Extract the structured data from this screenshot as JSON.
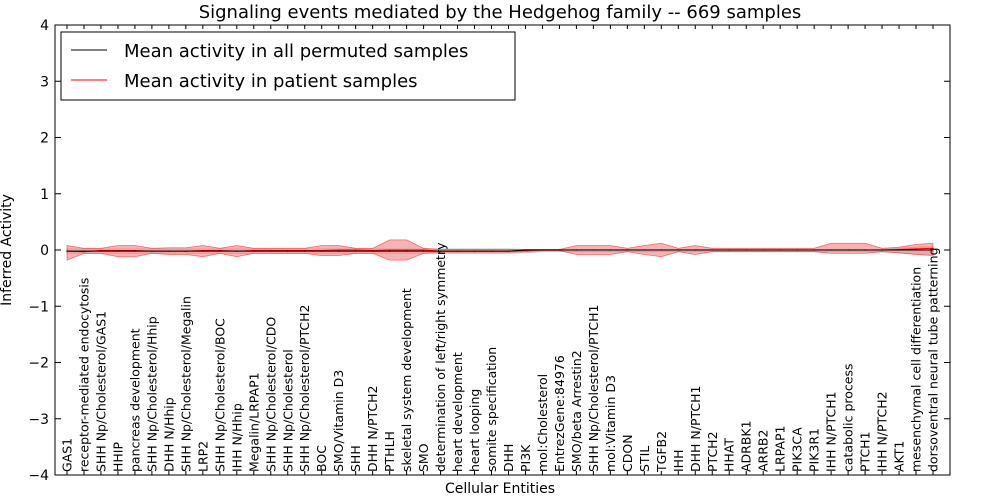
{
  "chart_data": {
    "type": "line",
    "title": "Signaling events mediated by the Hedgehog family -- 669 samples",
    "xlabel": "Cellular Entities",
    "ylabel": "Inferred Activity",
    "ylim": [
      -4,
      4
    ],
    "yticks": [
      -4,
      -3,
      -2,
      -1,
      0,
      1,
      2,
      3,
      4
    ],
    "ytick_labels": [
      "−4",
      "−3",
      "−2",
      "−1",
      "0",
      "1",
      "2",
      "3",
      "4"
    ],
    "grid": false,
    "legend_position": "top-left",
    "categories": [
      "GAS1",
      "receptor-mediated endocytosis",
      "SHH Np/Cholesterol/GAS1",
      "HHIP",
      "pancreas development",
      "SHH Np/Cholesterol/Hhip",
      "DHH N/Hhip",
      "SHH Np/Cholesterol/Megalin",
      "LRP2",
      "SHH Np/Cholesterol/BOC",
      "IHH N/Hhip",
      "Megalin/LRPAP1",
      "SHH Np/Cholesterol/CDO",
      "SHH Np/Cholesterol",
      "SHH Np/Cholesterol/PTCH2",
      "BOC",
      "SMO/Vitamin D3",
      "SHH",
      "DHH N/PTCH2",
      "PTHLH",
      "skeletal system development",
      "SMO",
      "determination of left/right symmetry",
      "heart development",
      "heart looping",
      "somite specification",
      "DHH",
      "PI3K",
      "mol:Cholesterol",
      "EntrezGene:84976",
      "SMO/beta Arrestin2",
      "SHH Np/Cholesterol/PTCH1",
      "mol:Vitamin D3",
      "CDON",
      "STIL",
      "TGFB2",
      "IHH",
      "DHH N/PTCH1",
      "PTCH2",
      "HHAT",
      "ADRBK1",
      "ARRB2",
      "LRPAP1",
      "PIK3CA",
      "PIK3R1",
      "IHH N/PTCH1",
      "catabolic process",
      "PTCH1",
      "IHH N/PTCH2",
      "AKT1",
      "mesenchymal cell differentiation",
      "dorsoventral neural tube patterning"
    ],
    "series": [
      {
        "name": "Mean activity in all permuted samples",
        "color": "#000000",
        "values": [
          -0.02,
          -0.02,
          -0.02,
          -0.02,
          -0.02,
          -0.02,
          -0.02,
          -0.02,
          -0.02,
          -0.02,
          -0.02,
          -0.02,
          -0.02,
          -0.02,
          -0.02,
          -0.02,
          -0.02,
          -0.02,
          -0.02,
          -0.02,
          -0.02,
          -0.02,
          -0.02,
          -0.02,
          -0.02,
          -0.02,
          -0.02,
          0,
          0,
          0,
          0,
          0,
          0,
          0,
          0,
          0,
          0,
          0,
          0,
          0,
          0,
          0,
          0,
          0,
          0,
          0,
          0,
          0,
          0,
          0,
          0,
          0
        ],
        "band_upper": [
          0.02,
          0.02,
          0.02,
          0.02,
          0.02,
          0.02,
          0.02,
          0.02,
          0.02,
          0.02,
          0.02,
          0.02,
          0.02,
          0.02,
          0.02,
          0.02,
          0.02,
          0.02,
          0.02,
          0.02,
          0.02,
          0.02,
          0.02,
          0.02,
          0.02,
          0.02,
          0.02,
          0.01,
          0.01,
          0.01,
          0.01,
          0.01,
          0.01,
          0.01,
          0.01,
          0.01,
          0.01,
          0.01,
          0.01,
          0.01,
          0.01,
          0.01,
          0.01,
          0.01,
          0.01,
          0.01,
          0.01,
          0.01,
          0.01,
          0.03,
          0.05,
          0.06
        ],
        "band_lower": [
          -0.06,
          -0.06,
          -0.06,
          -0.06,
          -0.06,
          -0.06,
          -0.06,
          -0.06,
          -0.06,
          -0.06,
          -0.06,
          -0.06,
          -0.06,
          -0.06,
          -0.06,
          -0.06,
          -0.06,
          -0.06,
          -0.06,
          -0.06,
          -0.06,
          -0.06,
          -0.06,
          -0.06,
          -0.06,
          -0.06,
          -0.06,
          -0.05,
          -0.03,
          -0.03,
          -0.03,
          -0.03,
          -0.03,
          -0.03,
          -0.03,
          -0.03,
          -0.03,
          -0.03,
          -0.03,
          -0.03,
          -0.03,
          -0.03,
          -0.03,
          -0.03,
          -0.03,
          -0.03,
          -0.03,
          -0.03,
          -0.03,
          -0.05,
          -0.07,
          -0.08
        ]
      },
      {
        "name": "Mean activity in patient samples",
        "color": "#ff0000",
        "values": [
          -0.02,
          -0.03,
          -0.01,
          -0.01,
          -0.01,
          -0.02,
          -0.02,
          -0.02,
          -0.01,
          -0.01,
          -0.02,
          -0.01,
          -0.01,
          -0.01,
          -0.01,
          -0.01,
          0,
          0,
          -0.01,
          0,
          0,
          0,
          -0.02,
          -0.02,
          -0.02,
          -0.02,
          -0.02,
          -0.01,
          0,
          0,
          0,
          0,
          0,
          0,
          0,
          0,
          0,
          0,
          0,
          0,
          0,
          0,
          0,
          0,
          0,
          0,
          0,
          0,
          0,
          0.01,
          0.02,
          0.03
        ],
        "band_upper": [
          0.08,
          0.03,
          0.03,
          0.08,
          0.08,
          0.03,
          0.04,
          0.04,
          0.08,
          0.03,
          0.08,
          0.03,
          0.03,
          0.03,
          0.03,
          0.08,
          0.08,
          0.03,
          0.03,
          0.18,
          0.18,
          0.03,
          0.01,
          0.01,
          0.01,
          0.01,
          0.01,
          0.01,
          0.01,
          0.01,
          0.08,
          0.08,
          0.08,
          0.03,
          0.08,
          0.12,
          0.03,
          0.08,
          0.03,
          0.03,
          0.03,
          0.03,
          0.03,
          0.03,
          0.03,
          0.12,
          0.12,
          0.12,
          0.03,
          0.05,
          0.1,
          0.12
        ],
        "band_lower": [
          -0.18,
          -0.06,
          -0.06,
          -0.12,
          -0.12,
          -0.06,
          -0.08,
          -0.08,
          -0.12,
          -0.06,
          -0.12,
          -0.06,
          -0.06,
          -0.06,
          -0.06,
          -0.1,
          -0.1,
          -0.06,
          -0.06,
          -0.18,
          -0.18,
          -0.06,
          -0.04,
          -0.04,
          -0.04,
          -0.04,
          -0.04,
          -0.03,
          -0.01,
          -0.01,
          -0.08,
          -0.08,
          -0.08,
          -0.03,
          -0.08,
          -0.12,
          -0.03,
          -0.08,
          -0.03,
          -0.03,
          -0.03,
          -0.03,
          -0.03,
          -0.03,
          -0.03,
          -0.06,
          -0.06,
          -0.06,
          -0.03,
          -0.05,
          -0.08,
          -0.1
        ]
      }
    ]
  }
}
